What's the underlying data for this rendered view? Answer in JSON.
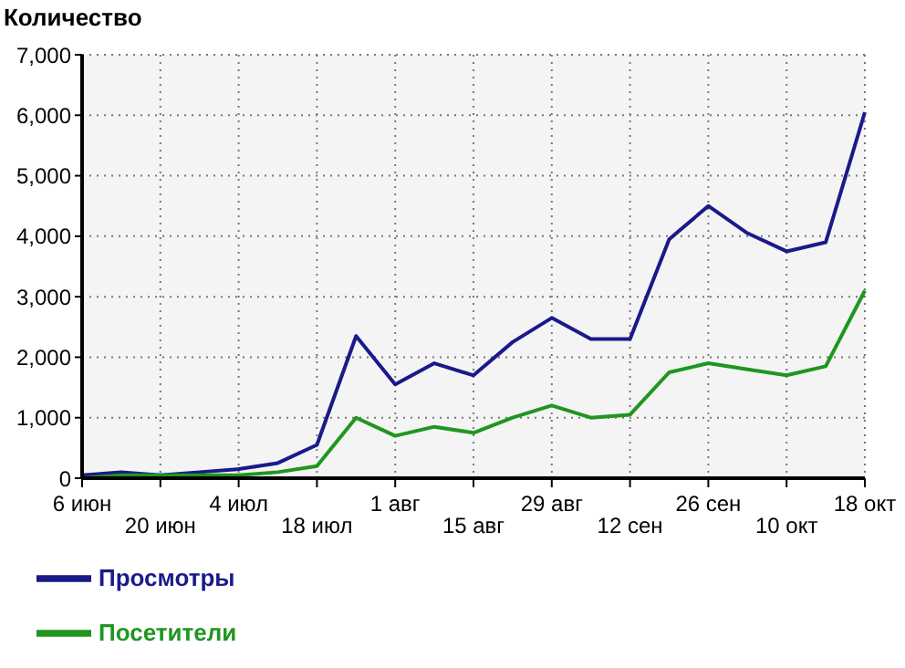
{
  "chart_data": {
    "type": "line",
    "title": "Количество",
    "categories": [
      "6 июн",
      null,
      "20 июн",
      null,
      "4 июл",
      null,
      "18 июл",
      null,
      "1 авг",
      null,
      "15 авг",
      null,
      "29 авг",
      null,
      "12 сен",
      null,
      "26 сен",
      null,
      "10 окт",
      null,
      "18 окт"
    ],
    "series": [
      {
        "name": "Просмотры",
        "color": "#1a1a8a",
        "values": [
          50,
          100,
          50,
          100,
          150,
          250,
          550,
          2350,
          1550,
          1900,
          1700,
          2250,
          2650,
          2300,
          2300,
          3950,
          4500,
          4050,
          3750,
          3900,
          6050
        ]
      },
      {
        "name": "Посетители",
        "color": "#1f961f",
        "values": [
          0,
          50,
          50,
          50,
          50,
          100,
          200,
          1000,
          700,
          850,
          750,
          1000,
          1200,
          1000,
          1050,
          1750,
          1900,
          1800,
          1700,
          1850,
          3100
        ]
      }
    ],
    "ylim": [
      0,
      7000
    ],
    "yticks": [
      {
        "value": 0,
        "label": "0"
      },
      {
        "value": 1000,
        "label": "1,000"
      },
      {
        "value": 2000,
        "label": "2,000"
      },
      {
        "value": 3000,
        "label": "3,000"
      },
      {
        "value": 4000,
        "label": "4,000"
      },
      {
        "value": 5000,
        "label": "5,000"
      },
      {
        "value": 6000,
        "label": "6,000"
      },
      {
        "value": 7000,
        "label": "7,000"
      }
    ],
    "grid": true,
    "legend": "bottom left"
  }
}
